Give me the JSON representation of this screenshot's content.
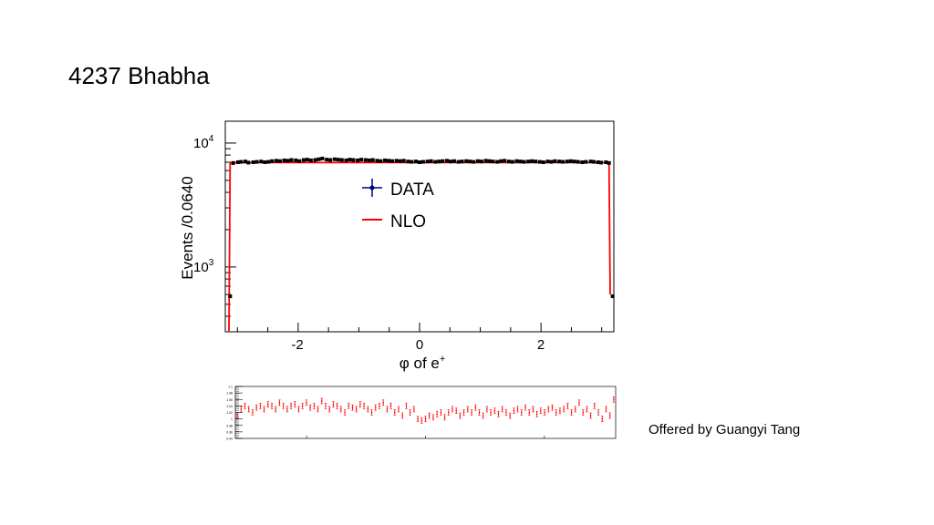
{
  "slide": {
    "title": "4237 Bhabha",
    "credit": "Offered by Guangyi Tang"
  },
  "chart_data": [
    {
      "type": "line",
      "xlabel_symbol": "φ",
      "xlabel_text": "of e",
      "xlabel_sup": "+",
      "ylabel": "Events /0.0640",
      "log_y": true,
      "xlim": [
        -3.2,
        3.2
      ],
      "ylim": [
        300,
        15000
      ],
      "x_ticks": [
        -2,
        0,
        2
      ],
      "x_tick_labels": [
        "-2",
        "0",
        "2"
      ],
      "y_major_ticks": [
        1000,
        10000
      ],
      "y_tick_base": "10",
      "y_tick_exponents": [
        "3",
        "4"
      ],
      "legend_placement": "center",
      "colors": {
        "data": "#000000",
        "data_legend": "#000080",
        "nlo": "#ff0000"
      },
      "series": [
        {
          "name": "DATA",
          "x": [
            -3.12,
            -3.07,
            -2.99,
            -2.94,
            -2.87,
            -2.82,
            -2.74,
            -2.68,
            -2.61,
            -2.55,
            -2.49,
            -2.43,
            -2.36,
            -2.3,
            -2.23,
            -2.17,
            -2.11,
            -2.04,
            -1.98,
            -1.91,
            -1.85,
            -1.79,
            -1.72,
            -1.66,
            -1.6,
            -1.53,
            -1.47,
            -1.4,
            -1.34,
            -1.28,
            -1.21,
            -1.15,
            -1.09,
            -1.02,
            -0.96,
            -0.89,
            -0.83,
            -0.77,
            -0.7,
            -0.64,
            -0.57,
            -0.51,
            -0.45,
            -0.38,
            -0.32,
            -0.26,
            -0.19,
            -0.13,
            -0.06,
            0.0,
            0.06,
            0.13,
            0.19,
            0.26,
            0.32,
            0.38,
            0.45,
            0.51,
            0.57,
            0.64,
            0.7,
            0.77,
            0.83,
            0.89,
            0.96,
            1.02,
            1.09,
            1.15,
            1.21,
            1.28,
            1.34,
            1.4,
            1.47,
            1.53,
            1.6,
            1.66,
            1.72,
            1.79,
            1.85,
            1.91,
            1.98,
            2.04,
            2.11,
            2.17,
            2.23,
            2.3,
            2.36,
            2.43,
            2.49,
            2.55,
            2.61,
            2.68,
            2.74,
            2.82,
            2.87,
            2.94,
            2.99,
            3.07,
            3.12,
            3.18
          ],
          "y": [
            580,
            6900,
            7000,
            7050,
            7100,
            6950,
            7000,
            7050,
            7100,
            7000,
            7050,
            7150,
            7200,
            7150,
            7250,
            7200,
            7300,
            7250,
            7150,
            7300,
            7350,
            7250,
            7300,
            7400,
            7500,
            7350,
            7300,
            7400,
            7350,
            7300,
            7250,
            7350,
            7300,
            7250,
            7350,
            7300,
            7250,
            7300,
            7200,
            7150,
            7250,
            7200,
            7150,
            7200,
            7150,
            7200,
            7100,
            7050,
            7100,
            7000,
            7050,
            7100,
            7150,
            7050,
            7100,
            7150,
            7200,
            7100,
            7150,
            7050,
            7100,
            7150,
            7100,
            7050,
            7150,
            7100,
            7200,
            7150,
            7100,
            7050,
            7150,
            7200,
            7100,
            7050,
            7150,
            7100,
            7050,
            7100,
            7150,
            7100,
            7050,
            7000,
            7100,
            7050,
            7150,
            7100,
            7050,
            7100,
            7150,
            7100,
            7050,
            7000,
            7050,
            7100,
            7050,
            7000,
            6950,
            7000,
            6900,
            580
          ]
        },
        {
          "name": "NLO",
          "x": [
            -3.14,
            -3.12,
            -3.07,
            3.12,
            3.14
          ],
          "y": [
            300,
            6900,
            6950,
            6950,
            600
          ]
        }
      ]
    },
    {
      "type": "scatter",
      "xlim": [
        -3.2,
        3.2
      ],
      "ylim": [
        0.94,
        1.1
      ],
      "y_tick_labels": [
        "1.1",
        "1.08",
        "1.06",
        "1.04",
        "1.02",
        "1",
        "0.98",
        "0.96",
        "0.94"
      ],
      "colors": {
        "points": "#ff0000"
      },
      "series": [
        {
          "values": [
            1.01,
            1.03,
            1.04,
            1.03,
            1.02,
            1.035,
            1.04,
            1.03,
            1.045,
            1.04,
            1.03,
            1.05,
            1.04,
            1.03,
            1.04,
            1.045,
            1.03,
            1.04,
            1.05,
            1.035,
            1.04,
            1.03,
            1.055,
            1.04,
            1.03,
            1.045,
            1.04,
            1.03,
            1.02,
            1.04,
            1.035,
            1.03,
            1.045,
            1.04,
            1.03,
            1.02,
            1.035,
            1.04,
            1.05,
            1.03,
            1.04,
            1.02,
            1.03,
            1.01,
            1.04,
            1.02,
            1.03,
            1.0,
            0.995,
            1.0,
            1.01,
            1.005,
            1.015,
            1.02,
            1.005,
            1.02,
            1.03,
            1.025,
            1.01,
            1.02,
            1.03,
            1.02,
            1.035,
            1.02,
            1.01,
            1.03,
            1.02,
            1.025,
            1.015,
            1.03,
            1.02,
            1.01,
            1.025,
            1.03,
            1.02,
            1.035,
            1.02,
            1.03,
            1.015,
            1.025,
            1.02,
            1.03,
            1.035,
            1.02,
            1.025,
            1.03,
            1.04,
            1.02,
            1.03,
            1.05,
            1.02,
            1.03,
            1.01,
            1.04,
            1.02,
            1.0,
            1.03,
            1.01,
            1.06
          ]
        }
      ]
    }
  ]
}
